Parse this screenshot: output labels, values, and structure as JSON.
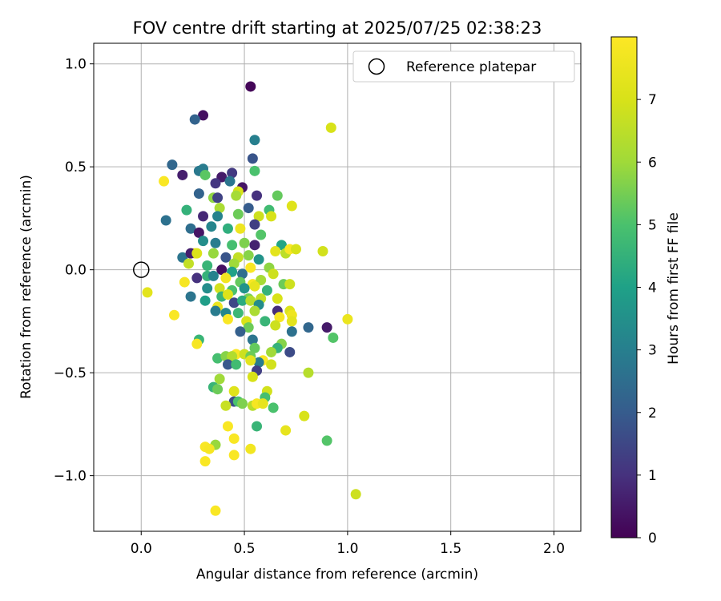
{
  "chart_data": {
    "type": "scatter",
    "title": "FOV centre drift starting at 2025/07/25 02:38:23",
    "xlabel": "Angular distance from reference (arcmin)",
    "ylabel": "Rotation from reference (arcmin)",
    "xlim": [
      -0.23,
      2.13
    ],
    "ylim": [
      -1.27,
      1.1
    ],
    "x_ticks": [
      "0.0",
      "0.5",
      "1.0",
      "1.5",
      "2.0"
    ],
    "x_tick_values": [
      0.0,
      0.5,
      1.0,
      1.5,
      2.0
    ],
    "y_ticks": [
      "1.0",
      "0.5",
      "0.0",
      "−0.5",
      "−1.0"
    ],
    "y_tick_values": [
      1.0,
      0.5,
      0.0,
      -0.5,
      -1.0
    ],
    "grid": true,
    "legend": {
      "position": "top-right",
      "entries": [
        {
          "label": "Reference platepar",
          "marker": "open-circle"
        }
      ]
    },
    "reference_point": {
      "x": 0.0,
      "y": 0.0
    },
    "colorbar": {
      "label": "Hours from first FF file",
      "min": 0,
      "max": 8,
      "ticks": [
        "0",
        "1",
        "2",
        "3",
        "4",
        "5",
        "6",
        "7"
      ],
      "tick_values": [
        0,
        1,
        2,
        3,
        4,
        5,
        6,
        7
      ],
      "colormap": "viridis"
    },
    "series": [
      {
        "points": [
          [
            0.53,
            0.89,
            0.1
          ],
          [
            0.3,
            0.75,
            0.3
          ],
          [
            0.26,
            0.73,
            2.2
          ],
          [
            0.92,
            0.69,
            7.0
          ],
          [
            0.55,
            0.63,
            3.0
          ],
          [
            0.15,
            0.51,
            2.3
          ],
          [
            0.28,
            0.48,
            2.8
          ],
          [
            0.3,
            0.49,
            2.9
          ],
          [
            0.31,
            0.46,
            5.2
          ],
          [
            0.2,
            0.46,
            0.6
          ],
          [
            0.54,
            0.54,
            1.8
          ],
          [
            0.55,
            0.48,
            5.0
          ],
          [
            0.39,
            0.45,
            0.5
          ],
          [
            0.44,
            0.47,
            1.2
          ],
          [
            0.11,
            0.43,
            7.9
          ],
          [
            0.36,
            0.42,
            1.1
          ],
          [
            0.43,
            0.43,
            2.7
          ],
          [
            0.49,
            0.4,
            0.4
          ],
          [
            0.47,
            0.38,
            7.0
          ],
          [
            0.46,
            0.36,
            6.1
          ],
          [
            0.28,
            0.37,
            2.2
          ],
          [
            0.35,
            0.35,
            5.8
          ],
          [
            0.37,
            0.35,
            1.4
          ],
          [
            0.56,
            0.36,
            1.0
          ],
          [
            0.66,
            0.36,
            5.3
          ],
          [
            0.22,
            0.29,
            4.5
          ],
          [
            0.3,
            0.26,
            0.8
          ],
          [
            0.38,
            0.3,
            6.2
          ],
          [
            0.37,
            0.26,
            3.1
          ],
          [
            0.47,
            0.27,
            5.4
          ],
          [
            0.52,
            0.3,
            2.0
          ],
          [
            0.57,
            0.26,
            6.8
          ],
          [
            0.62,
            0.29,
            4.8
          ],
          [
            0.73,
            0.31,
            7.2
          ],
          [
            0.63,
            0.26,
            7.0
          ],
          [
            0.12,
            0.24,
            2.6
          ],
          [
            0.24,
            0.2,
            2.5
          ],
          [
            0.28,
            0.18,
            0.4
          ],
          [
            0.34,
            0.21,
            3.2
          ],
          [
            0.42,
            0.2,
            4.4
          ],
          [
            0.48,
            0.2,
            7.6
          ],
          [
            0.55,
            0.22,
            1.3
          ],
          [
            0.58,
            0.17,
            5.1
          ],
          [
            0.3,
            0.14,
            3.4
          ],
          [
            0.36,
            0.13,
            2.9
          ],
          [
            0.44,
            0.12,
            4.9
          ],
          [
            0.5,
            0.13,
            5.6
          ],
          [
            0.55,
            0.12,
            0.7
          ],
          [
            0.68,
            0.12,
            4.1
          ],
          [
            0.7,
            0.08,
            6.5
          ],
          [
            0.2,
            0.06,
            2.7
          ],
          [
            0.26,
            0.08,
            7.8
          ],
          [
            0.35,
            0.08,
            5.9
          ],
          [
            0.41,
            0.06,
            1.8
          ],
          [
            0.47,
            0.06,
            6.6
          ],
          [
            0.52,
            0.07,
            5.7
          ],
          [
            0.57,
            0.05,
            3.6
          ],
          [
            0.65,
            0.09,
            7.3
          ],
          [
            0.72,
            0.1,
            7.9
          ],
          [
            0.88,
            0.09,
            6.9
          ],
          [
            0.24,
            0.08,
            0.6
          ],
          [
            0.23,
            0.03,
            6.6
          ],
          [
            0.27,
            0.08,
            7.1
          ],
          [
            0.75,
            0.1,
            7.0
          ],
          [
            0.32,
            0.02,
            4.6
          ],
          [
            0.45,
            0.03,
            6.0
          ],
          [
            0.53,
            0.01,
            7.9
          ],
          [
            0.62,
            0.01,
            5.8
          ],
          [
            0.39,
            0.0,
            0.3
          ],
          [
            0.44,
            -0.01,
            4.0
          ],
          [
            0.49,
            -0.02,
            2.5
          ],
          [
            0.64,
            -0.02,
            6.8
          ],
          [
            0.03,
            -0.11,
            7.3
          ],
          [
            0.21,
            -0.06,
            7.8
          ],
          [
            0.27,
            -0.04,
            1.0
          ],
          [
            0.32,
            -0.03,
            4.5
          ],
          [
            0.35,
            -0.03,
            3.1
          ],
          [
            0.41,
            -0.04,
            7.7
          ],
          [
            0.48,
            -0.06,
            5.3
          ],
          [
            0.54,
            -0.07,
            7.9
          ],
          [
            0.58,
            -0.05,
            6.1
          ],
          [
            0.69,
            -0.07,
            5.4
          ],
          [
            0.72,
            -0.07,
            6.8
          ],
          [
            0.32,
            -0.09,
            3.4
          ],
          [
            0.38,
            -0.09,
            6.9
          ],
          [
            0.44,
            -0.1,
            5.0
          ],
          [
            0.5,
            -0.09,
            3.6
          ],
          [
            0.55,
            -0.08,
            7.4
          ],
          [
            0.61,
            -0.1,
            4.5
          ],
          [
            0.24,
            -0.13,
            2.7
          ],
          [
            0.39,
            -0.13,
            4.6
          ],
          [
            0.42,
            -0.12,
            7.1
          ],
          [
            0.52,
            -0.14,
            5.5
          ],
          [
            0.58,
            -0.14,
            6.6
          ],
          [
            0.66,
            -0.14,
            7.0
          ],
          [
            0.31,
            -0.15,
            3.9
          ],
          [
            0.37,
            -0.18,
            7.5
          ],
          [
            0.45,
            -0.16,
            1.5
          ],
          [
            0.49,
            -0.15,
            4.3
          ],
          [
            0.53,
            -0.15,
            6.4
          ],
          [
            0.57,
            -0.17,
            3.4
          ],
          [
            0.16,
            -0.22,
            7.9
          ],
          [
            0.36,
            -0.2,
            2.9
          ],
          [
            0.41,
            -0.21,
            3.2
          ],
          [
            0.47,
            -0.21,
            4.7
          ],
          [
            0.55,
            -0.2,
            6.2
          ],
          [
            0.66,
            -0.2,
            0.9
          ],
          [
            0.72,
            -0.2,
            7.1
          ],
          [
            0.73,
            -0.22,
            7.6
          ],
          [
            1.0,
            -0.24,
            7.5
          ],
          [
            0.42,
            -0.24,
            7.9
          ],
          [
            0.51,
            -0.25,
            7.0
          ],
          [
            0.6,
            -0.25,
            4.6
          ],
          [
            0.67,
            -0.23,
            7.8
          ],
          [
            0.73,
            -0.25,
            7.3
          ],
          [
            0.52,
            -0.28,
            5.4
          ],
          [
            0.65,
            -0.27,
            6.8
          ],
          [
            0.81,
            -0.28,
            2.3
          ],
          [
            0.9,
            -0.28,
            0.5
          ],
          [
            0.48,
            -0.3,
            2.1
          ],
          [
            0.73,
            -0.3,
            2.6
          ],
          [
            0.93,
            -0.33,
            5.1
          ],
          [
            0.28,
            -0.34,
            4.6
          ],
          [
            0.27,
            -0.36,
            7.8
          ],
          [
            0.54,
            -0.34,
            2.7
          ],
          [
            0.68,
            -0.36,
            5.7
          ],
          [
            0.55,
            -0.38,
            5.3
          ],
          [
            0.66,
            -0.38,
            4.5
          ],
          [
            0.72,
            -0.4,
            1.6
          ],
          [
            0.63,
            -0.4,
            6.0
          ],
          [
            0.37,
            -0.43,
            4.9
          ],
          [
            0.41,
            -0.42,
            5.7
          ],
          [
            0.46,
            -0.41,
            7.9
          ],
          [
            0.44,
            -0.42,
            6.3
          ],
          [
            0.5,
            -0.41,
            6.8
          ],
          [
            0.53,
            -0.42,
            5.4
          ],
          [
            0.59,
            -0.44,
            7.9
          ],
          [
            0.57,
            -0.45,
            2.9
          ],
          [
            0.42,
            -0.46,
            1.9
          ],
          [
            0.46,
            -0.46,
            4.8
          ],
          [
            0.53,
            -0.44,
            7.3
          ],
          [
            0.63,
            -0.46,
            6.9
          ],
          [
            0.56,
            -0.49,
            1.3
          ],
          [
            0.81,
            -0.5,
            6.4
          ],
          [
            0.38,
            -0.53,
            6.0
          ],
          [
            0.54,
            -0.52,
            7.0
          ],
          [
            0.35,
            -0.57,
            4.6
          ],
          [
            0.37,
            -0.58,
            5.4
          ],
          [
            0.45,
            -0.59,
            7.2
          ],
          [
            0.61,
            -0.59,
            6.9
          ],
          [
            0.6,
            -0.62,
            4.9
          ],
          [
            0.45,
            -0.64,
            1.6
          ],
          [
            0.47,
            -0.64,
            5.0
          ],
          [
            0.49,
            -0.65,
            5.6
          ],
          [
            0.41,
            -0.66,
            6.7
          ],
          [
            0.54,
            -0.66,
            6.4
          ],
          [
            0.56,
            -0.65,
            7.8
          ],
          [
            0.59,
            -0.65,
            7.4
          ],
          [
            0.64,
            -0.67,
            5.0
          ],
          [
            0.79,
            -0.71,
            7.0
          ],
          [
            0.42,
            -0.76,
            7.9
          ],
          [
            0.56,
            -0.76,
            4.6
          ],
          [
            0.7,
            -0.78,
            7.4
          ],
          [
            0.45,
            -0.82,
            7.9
          ],
          [
            0.9,
            -0.83,
            5.1
          ],
          [
            0.36,
            -0.85,
            5.9
          ],
          [
            0.31,
            -0.86,
            7.9
          ],
          [
            0.33,
            -0.87,
            7.8
          ],
          [
            0.53,
            -0.87,
            7.7
          ],
          [
            0.45,
            -0.9,
            7.9
          ],
          [
            0.31,
            -0.93,
            7.9
          ],
          [
            1.04,
            -1.09,
            6.8
          ],
          [
            0.36,
            -1.17,
            7.9
          ]
        ]
      }
    ]
  }
}
